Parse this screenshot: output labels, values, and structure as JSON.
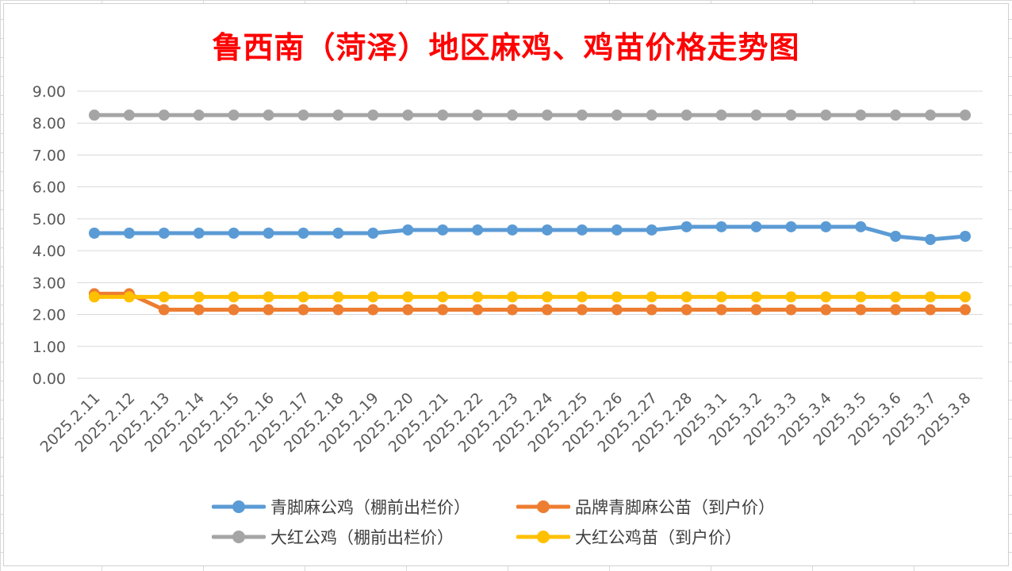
{
  "chart_data": {
    "type": "line",
    "title": "鲁西南（菏泽）地区麻鸡、鸡苗价格走势图",
    "xlabel": "",
    "ylabel": "",
    "ylim": [
      0,
      9
    ],
    "yticks": [
      "0.00",
      "1.00",
      "2.00",
      "3.00",
      "4.00",
      "5.00",
      "6.00",
      "7.00",
      "8.00",
      "9.00"
    ],
    "grid": true,
    "legend_position": "bottom",
    "categories": [
      "2025.2.11",
      "2025.2.12",
      "2025.2.13",
      "2025.2.14",
      "2025.2.15",
      "2025.2.16",
      "2025.2.17",
      "2025.2.18",
      "2025.2.19",
      "2025.2.20",
      "2025.2.21",
      "2025.2.22",
      "2025.2.23",
      "2025.2.24",
      "2025.2.25",
      "2025.2.26",
      "2025.2.27",
      "2025.2.28",
      "2025.3.1",
      "2025.3.2",
      "2025.3.3",
      "2025.3.4",
      "2025.3.5",
      "2025.3.6",
      "2025.3.7",
      "2025.3.8"
    ],
    "series": [
      {
        "name": "青脚麻公鸡（棚前出栏价）",
        "color": "#5b9bd5",
        "values": [
          4.55,
          4.55,
          4.55,
          4.55,
          4.55,
          4.55,
          4.55,
          4.55,
          4.55,
          4.65,
          4.65,
          4.65,
          4.65,
          4.65,
          4.65,
          4.65,
          4.65,
          4.75,
          4.75,
          4.75,
          4.75,
          4.75,
          4.75,
          4.45,
          4.35,
          4.45
        ]
      },
      {
        "name": "品牌青脚麻公苗（到户价）",
        "color": "#ed7d31",
        "values": [
          2.65,
          2.65,
          2.15,
          2.15,
          2.15,
          2.15,
          2.15,
          2.15,
          2.15,
          2.15,
          2.15,
          2.15,
          2.15,
          2.15,
          2.15,
          2.15,
          2.15,
          2.15,
          2.15,
          2.15,
          2.15,
          2.15,
          2.15,
          2.15,
          2.15,
          2.15
        ]
      },
      {
        "name": "大红公鸡（棚前出栏价）",
        "color": "#a5a5a5",
        "values": [
          8.25,
          8.25,
          8.25,
          8.25,
          8.25,
          8.25,
          8.25,
          8.25,
          8.25,
          8.25,
          8.25,
          8.25,
          8.25,
          8.25,
          8.25,
          8.25,
          8.25,
          8.25,
          8.25,
          8.25,
          8.25,
          8.25,
          8.25,
          8.25,
          8.25,
          8.25
        ]
      },
      {
        "name": "大红公鸡苗（到户价）",
        "color": "#ffc000",
        "values": [
          2.55,
          2.55,
          2.55,
          2.55,
          2.55,
          2.55,
          2.55,
          2.55,
          2.55,
          2.55,
          2.55,
          2.55,
          2.55,
          2.55,
          2.55,
          2.55,
          2.55,
          2.55,
          2.55,
          2.55,
          2.55,
          2.55,
          2.55,
          2.55,
          2.55,
          2.55
        ]
      }
    ]
  }
}
